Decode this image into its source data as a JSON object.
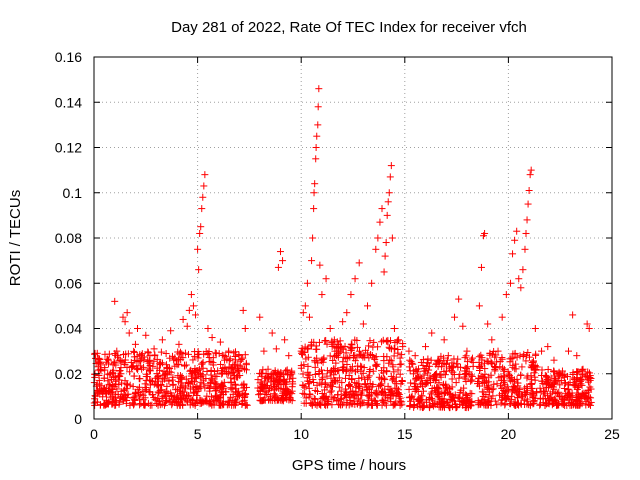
{
  "chart_data": {
    "type": "scatter",
    "title": "Day 281 of 2022, Rate Of TEC Index for receiver vfch",
    "xlabel": "GPS time / hours",
    "ylabel": "ROTI / TECUs",
    "xlim": [
      0,
      25
    ],
    "ylim": [
      0,
      0.16
    ],
    "x_ticks": [
      0,
      5,
      10,
      15,
      20,
      25
    ],
    "x_tick_labels": [
      "0",
      "5",
      "10",
      "15",
      "20",
      "25"
    ],
    "y_ticks": [
      0,
      0.02,
      0.04,
      0.06,
      0.08,
      0.1,
      0.12,
      0.14,
      0.16
    ],
    "y_tick_labels": [
      "0",
      "0.02",
      "0.04",
      "0.06",
      "0.08",
      "0.1",
      "0.12",
      "0.14",
      "0.16"
    ],
    "grid": true,
    "marker": "plus",
    "marker_color": "#ff0000",
    "series": [
      {
        "points": [
          [
            0.05,
            0.029
          ],
          [
            0.2,
            0.012
          ],
          [
            0.3,
            0.022
          ],
          [
            0.5,
            0.018
          ],
          [
            0.7,
            0.026
          ],
          [
            0.9,
            0.015
          ],
          [
            1.0,
            0.052
          ],
          [
            1.1,
            0.03
          ],
          [
            1.3,
            0.02
          ],
          [
            1.4,
            0.045
          ],
          [
            1.5,
            0.043
          ],
          [
            1.6,
            0.047
          ],
          [
            1.7,
            0.038
          ],
          [
            1.8,
            0.025
          ],
          [
            2.0,
            0.033
          ],
          [
            2.1,
            0.04
          ],
          [
            2.3,
            0.022
          ],
          [
            2.5,
            0.037
          ],
          [
            2.7,
            0.028
          ],
          [
            2.9,
            0.031
          ],
          [
            3.1,
            0.019
          ],
          [
            3.3,
            0.035
          ],
          [
            3.5,
            0.024
          ],
          [
            3.7,
            0.039
          ],
          [
            3.9,
            0.027
          ],
          [
            4.1,
            0.033
          ],
          [
            4.3,
            0.044
          ],
          [
            4.5,
            0.041
          ],
          [
            4.6,
            0.048
          ],
          [
            4.7,
            0.055
          ],
          [
            4.8,
            0.05
          ],
          [
            4.9,
            0.046
          ],
          [
            5.0,
            0.075
          ],
          [
            5.05,
            0.066
          ],
          [
            5.1,
            0.082
          ],
          [
            5.15,
            0.085
          ],
          [
            5.2,
            0.093
          ],
          [
            5.25,
            0.098
          ],
          [
            5.3,
            0.103
          ],
          [
            5.35,
            0.108
          ],
          [
            5.5,
            0.04
          ],
          [
            5.7,
            0.036
          ],
          [
            5.9,
            0.029
          ],
          [
            6.1,
            0.034
          ],
          [
            6.3,
            0.026
          ],
          [
            6.5,
            0.03
          ],
          [
            6.8,
            0.022
          ],
          [
            7.0,
            0.028
          ],
          [
            7.2,
            0.048
          ],
          [
            7.3,
            0.04
          ],
          [
            8.0,
            0.045
          ],
          [
            8.2,
            0.03
          ],
          [
            8.4,
            0.022
          ],
          [
            8.6,
            0.038
          ],
          [
            8.8,
            0.031
          ],
          [
            8.9,
            0.067
          ],
          [
            9.0,
            0.074
          ],
          [
            9.1,
            0.07
          ],
          [
            9.2,
            0.035
          ],
          [
            9.4,
            0.028
          ],
          [
            9.6,
            0.018
          ],
          [
            10.0,
            0.03
          ],
          [
            10.1,
            0.047
          ],
          [
            10.2,
            0.05
          ],
          [
            10.3,
            0.06
          ],
          [
            10.4,
            0.045
          ],
          [
            10.5,
            0.07
          ],
          [
            10.55,
            0.08
          ],
          [
            10.6,
            0.093
          ],
          [
            10.62,
            0.1
          ],
          [
            10.65,
            0.104
          ],
          [
            10.7,
            0.115
          ],
          [
            10.72,
            0.12
          ],
          [
            10.75,
            0.125
          ],
          [
            10.8,
            0.13
          ],
          [
            10.82,
            0.138
          ],
          [
            10.85,
            0.146
          ],
          [
            10.9,
            0.068
          ],
          [
            11.0,
            0.055
          ],
          [
            11.2,
            0.062
          ],
          [
            11.4,
            0.04
          ],
          [
            11.6,
            0.035
          ],
          [
            11.8,
            0.03
          ],
          [
            12.0,
            0.043
          ],
          [
            12.2,
            0.047
          ],
          [
            12.4,
            0.055
          ],
          [
            12.6,
            0.062
          ],
          [
            12.8,
            0.069
          ],
          [
            13.0,
            0.042
          ],
          [
            13.2,
            0.05
          ],
          [
            13.4,
            0.06
          ],
          [
            13.6,
            0.075
          ],
          [
            13.7,
            0.08
          ],
          [
            13.8,
            0.087
          ],
          [
            13.9,
            0.093
          ],
          [
            14.0,
            0.065
          ],
          [
            14.05,
            0.072
          ],
          [
            14.1,
            0.078
          ],
          [
            14.15,
            0.09
          ],
          [
            14.2,
            0.096
          ],
          [
            14.25,
            0.1
          ],
          [
            14.3,
            0.107
          ],
          [
            14.35,
            0.112
          ],
          [
            14.4,
            0.08
          ],
          [
            14.5,
            0.04
          ],
          [
            14.7,
            0.035
          ],
          [
            14.9,
            0.032
          ],
          [
            15.2,
            0.03
          ],
          [
            15.5,
            0.028
          ],
          [
            15.8,
            0.025
          ],
          [
            16.0,
            0.032
          ],
          [
            16.3,
            0.038
          ],
          [
            16.6,
            0.026
          ],
          [
            16.9,
            0.035
          ],
          [
            17.1,
            0.028
          ],
          [
            17.4,
            0.045
          ],
          [
            17.6,
            0.053
          ],
          [
            17.8,
            0.041
          ],
          [
            18.0,
            0.03
          ],
          [
            18.3,
            0.025
          ],
          [
            18.6,
            0.05
          ],
          [
            18.7,
            0.067
          ],
          [
            18.8,
            0.081
          ],
          [
            18.85,
            0.082
          ],
          [
            19.0,
            0.042
          ],
          [
            19.2,
            0.035
          ],
          [
            19.5,
            0.03
          ],
          [
            19.7,
            0.045
          ],
          [
            19.9,
            0.055
          ],
          [
            20.1,
            0.06
          ],
          [
            20.2,
            0.073
          ],
          [
            20.3,
            0.079
          ],
          [
            20.4,
            0.083
          ],
          [
            20.5,
            0.062
          ],
          [
            20.6,
            0.058
          ],
          [
            20.7,
            0.066
          ],
          [
            20.8,
            0.075
          ],
          [
            20.85,
            0.082
          ],
          [
            20.9,
            0.088
          ],
          [
            20.95,
            0.095
          ],
          [
            21.0,
            0.101
          ],
          [
            21.05,
            0.108
          ],
          [
            21.1,
            0.11
          ],
          [
            21.3,
            0.04
          ],
          [
            21.6,
            0.03
          ],
          [
            21.9,
            0.032
          ],
          [
            22.2,
            0.026
          ],
          [
            22.5,
            0.02
          ],
          [
            22.9,
            0.03
          ],
          [
            23.1,
            0.046
          ],
          [
            23.3,
            0.028
          ],
          [
            23.6,
            0.022
          ],
          [
            23.8,
            0.042
          ],
          [
            23.9,
            0.04
          ]
        ]
      }
    ]
  }
}
